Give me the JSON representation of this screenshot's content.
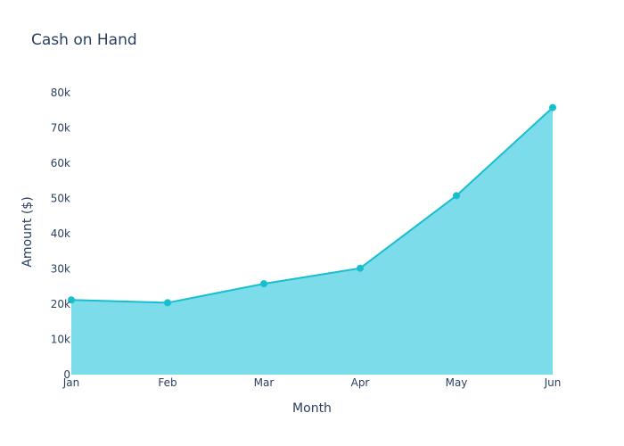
{
  "chart_data": {
    "type": "area",
    "title": "Cash on Hand",
    "xlabel": "Month",
    "ylabel": "Amount ($)",
    "categories": [
      "Jan",
      "Feb",
      "Mar",
      "Apr",
      "May",
      "Jun"
    ],
    "values": [
      21200,
      20400,
      25800,
      30200,
      50800,
      75800
    ],
    "ylim": [
      0,
      80000
    ],
    "yticks": [
      0,
      10000,
      20000,
      30000,
      40000,
      50000,
      60000,
      70000,
      80000
    ],
    "ytick_labels": [
      "0",
      "10k",
      "20k",
      "30k",
      "40k",
      "50k",
      "60k",
      "70k",
      "80k"
    ],
    "grid": false,
    "colors": {
      "line": "#17becf",
      "fill": "#7ddcea",
      "text": "#2a3f5f"
    }
  }
}
